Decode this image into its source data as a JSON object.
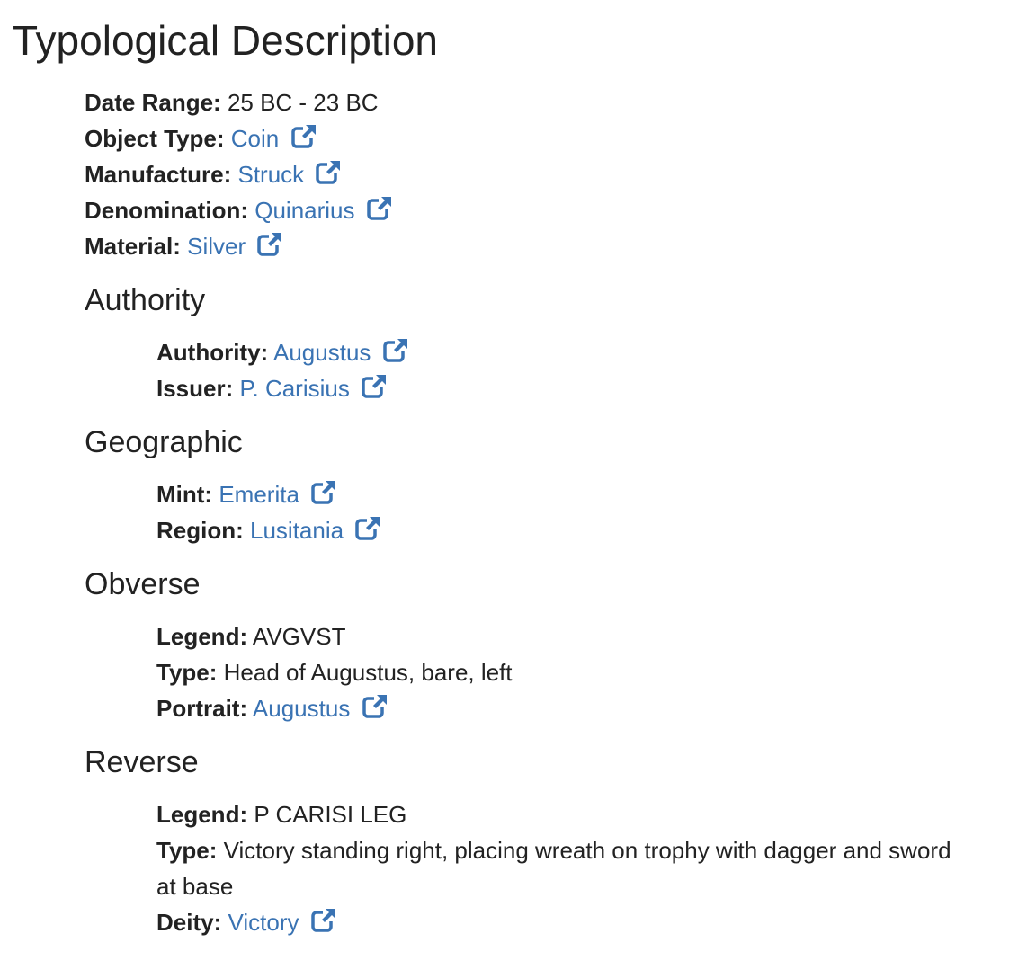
{
  "title": "Typological Description",
  "fields": [
    {
      "label": "Date Range:",
      "value": "25 BC - 23 BC",
      "link": false
    },
    {
      "label": "Object Type:",
      "value": "Coin",
      "link": true
    },
    {
      "label": "Manufacture:",
      "value": "Struck",
      "link": true
    },
    {
      "label": "Denomination:",
      "value": "Quinarius",
      "link": true
    },
    {
      "label": "Material:",
      "value": "Silver",
      "link": true
    }
  ],
  "authority": {
    "heading": "Authority",
    "fields": [
      {
        "label": "Authority:",
        "value": "Augustus",
        "link": true
      },
      {
        "label": "Issuer:",
        "value": "P. Carisius",
        "link": true
      }
    ]
  },
  "geographic": {
    "heading": "Geographic",
    "fields": [
      {
        "label": "Mint:",
        "value": "Emerita",
        "link": true
      },
      {
        "label": "Region:",
        "value": "Lusitania",
        "link": true
      }
    ]
  },
  "obverse": {
    "heading": "Obverse",
    "fields": [
      {
        "label": "Legend:",
        "value": "AVGVST",
        "link": false
      },
      {
        "label": "Type:",
        "value": "Head of Augustus, bare, left",
        "link": false
      },
      {
        "label": "Portrait:",
        "value": "Augustus",
        "link": true
      }
    ]
  },
  "reverse": {
    "heading": "Reverse",
    "fields": [
      {
        "label": "Legend:",
        "value": "P CARISI LEG",
        "link": false
      },
      {
        "label": "Type:",
        "value": "Victory standing right, placing wreath on trophy with dagger and sword at base",
        "link": false
      },
      {
        "label": "Deity:",
        "value": "Victory",
        "link": true
      }
    ]
  },
  "icons": {
    "external_link": "external-link-icon"
  },
  "colors": {
    "link": "#3a73b3",
    "text": "#222222"
  }
}
